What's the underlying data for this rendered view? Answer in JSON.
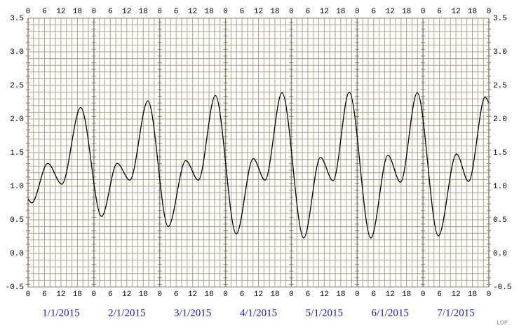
{
  "chart_data": {
    "type": "line",
    "x": [
      0,
      1.3,
      7.2,
      12.3,
      19.2,
      26.8,
      32.5,
      37.1,
      43.7,
      51.1,
      57.5,
      62.1,
      68.3,
      75.9,
      82.1,
      86.4,
      92.6,
      100.5,
      106.6,
      111.2,
      117.1,
      125.0,
      131.2,
      135.8,
      141.9,
      149.6,
      156.2,
      160.6,
      166.7,
      168
    ],
    "series": [
      {
        "color": "#000000",
        "values": [
          0.8,
          0.75,
          1.34,
          1.03,
          2.17,
          0.55,
          1.34,
          1.09,
          2.27,
          0.4,
          1.38,
          1.09,
          2.35,
          0.29,
          1.41,
          1.09,
          2.39,
          0.23,
          1.43,
          1.08,
          2.4,
          0.23,
          1.46,
          1.06,
          2.39,
          0.26,
          1.48,
          1.07,
          2.33,
          2.25
        ]
      }
    ],
    "xlim": [
      0,
      168
    ],
    "xticks": [
      0,
      6,
      12,
      18,
      {
        "value": 24,
        "label": "0"
      },
      {
        "value": 30,
        "label": "6"
      },
      {
        "value": 36,
        "label": "12"
      },
      {
        "value": 42,
        "label": "18"
      },
      {
        "value": 48,
        "label": "0"
      },
      {
        "value": 54,
        "label": "6"
      },
      {
        "value": 60,
        "label": "12"
      },
      {
        "value": 66,
        "label": "18"
      },
      {
        "value": 72,
        "label": "0"
      },
      {
        "value": 78,
        "label": "6"
      },
      {
        "value": 84,
        "label": "12"
      },
      {
        "value": 90,
        "label": "18"
      },
      {
        "value": 96,
        "label": "0"
      },
      {
        "value": 102,
        "label": "6"
      },
      {
        "value": 108,
        "label": "12"
      },
      {
        "value": 114,
        "label": "18"
      },
      {
        "value": 120,
        "label": "0"
      },
      {
        "value": 126,
        "label": "6"
      },
      {
        "value": 132,
        "label": "12"
      },
      {
        "value": 138,
        "label": "18"
      },
      {
        "value": 144,
        "label": "0"
      },
      {
        "value": 150,
        "label": "6"
      },
      {
        "value": 156,
        "label": "12"
      },
      {
        "value": 162,
        "label": "18"
      },
      {
        "value": 168,
        "label": "0"
      }
    ],
    "ylim": [
      -0.5,
      3.5
    ],
    "yticks": [
      -0.5,
      {
        "value": 0,
        "label": "0.0"
      },
      0.5,
      {
        "value": 1,
        "label": "1.0"
      },
      1.5,
      {
        "value": 2,
        "label": "2.0"
      },
      2.5,
      {
        "value": 3,
        "label": "3.0"
      },
      3.5
    ],
    "date_labels": [
      "1/1/2015",
      "2/1/2015",
      "3/1/2015",
      "4/1/2015",
      "5/1/2015",
      "6/1/2015",
      "7/1/2015"
    ],
    "credit": "LOP",
    "grid": true
  }
}
